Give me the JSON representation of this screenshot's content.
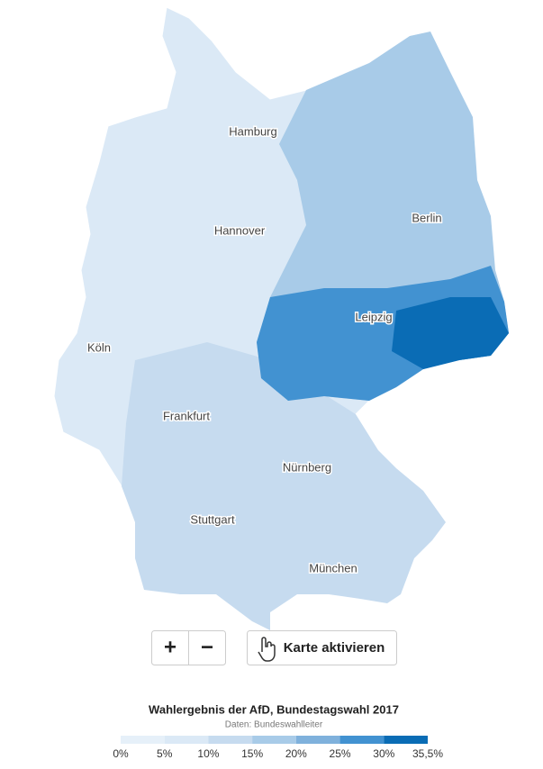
{
  "map": {
    "cities": [
      "Hamburg",
      "Hannover",
      "Berlin",
      "Leipzig",
      "Köln",
      "Frankfurt",
      "Nürnberg",
      "Stuttgart",
      "München"
    ]
  },
  "controls": {
    "zoom_in": "+",
    "zoom_out": "−",
    "activate": "Karte aktivieren"
  },
  "legend": {
    "title": "Wahlergebnis der AfD, Bundestagswahl 2017",
    "source": "Daten: Bundeswahlleiter",
    "ticks": [
      "0%",
      "5%",
      "10%",
      "15%",
      "20%",
      "25%",
      "30%",
      "35,5%"
    ]
  }
}
